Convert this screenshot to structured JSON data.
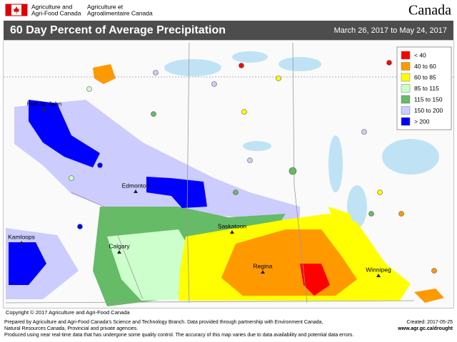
{
  "header": {
    "dept_en_1": "Agriculture and",
    "dept_en_2": "Agri-Food Canada",
    "dept_fr_1": "Agriculture et",
    "dept_fr_2": "Agroalimentaire Canada",
    "wordmark": "Canada"
  },
  "title": "60 Day Percent of Average Precipitation",
  "date_range": "March 26, 2017 to May 24, 2017",
  "legend": [
    {
      "label": "< 40",
      "color": "#ff0000"
    },
    {
      "label": "40 to 60",
      "color": "#ff9900"
    },
    {
      "label": "60 to 85",
      "color": "#ffff00"
    },
    {
      "label": "85 to 115",
      "color": "#ccffcc"
    },
    {
      "label": "115 to 150",
      "color": "#66bb66"
    },
    {
      "label": "150 to 200",
      "color": "#ccccff"
    },
    {
      "label": "> 200",
      "color": "#0000ff"
    }
  ],
  "cities": [
    {
      "name": "Fort St. John"
    },
    {
      "name": "Edmonton"
    },
    {
      "name": "Kamloops"
    },
    {
      "name": "Calgary"
    },
    {
      "name": "Saskatoon"
    },
    {
      "name": "Regina"
    },
    {
      "name": "Winnipeg"
    }
  ],
  "copyright": "Copyright © 2017 Agriculture and Agri-Food Canada",
  "footer": {
    "lines": [
      "Prepared by Agriculture and Agri-Food Canada's Science and Technology Branch. Data provided through partnership with Environment Canada,",
      "Natural Resources Canada, Provincial and private agencies.",
      "Produced using near real-time data that has undergone some quality control. The accuracy of this map varies due to data availability and potential data errors."
    ],
    "created": "Created: 2017-05-25",
    "url": "www.agr.gc.ca/drought"
  }
}
